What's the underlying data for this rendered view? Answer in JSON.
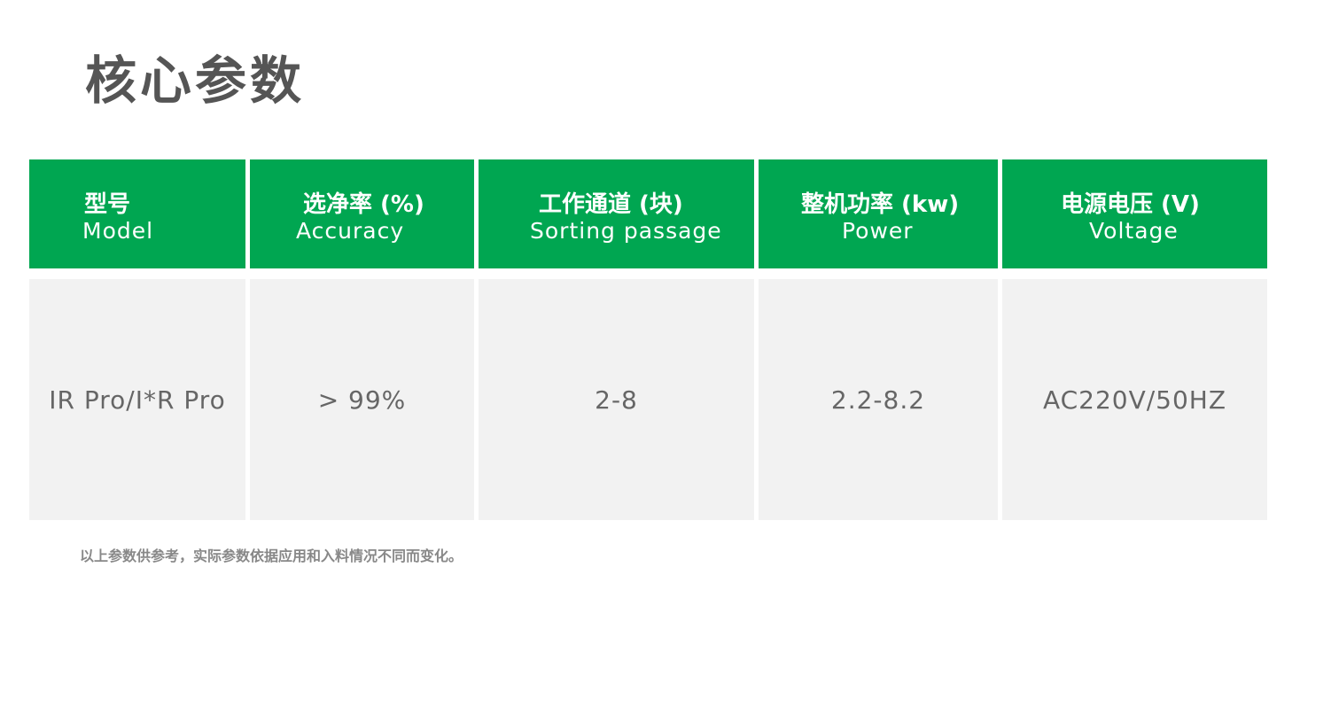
{
  "title": "核心参数",
  "headers": [
    {
      "zh": "型号",
      "en": "Model"
    },
    {
      "zh": "选净率 (%)",
      "en": "Accuracy"
    },
    {
      "zh": "工作通道 (块)",
      "en": "Sorting passage"
    },
    {
      "zh": "整机功率 (kw)",
      "en": "Power"
    },
    {
      "zh": "电源电压 (V)",
      "en": "Voltage"
    }
  ],
  "row": [
    "IR Pro/I*R Pro",
    "> 99%",
    "2-8",
    "2.2-8.2",
    "AC220V/50HZ"
  ],
  "note": "以上参数供参考，实际参数依据应用和入料情况不同而变化。",
  "colors": {
    "header_bg": "#00a651",
    "cell_bg": "#f2f2f2"
  }
}
